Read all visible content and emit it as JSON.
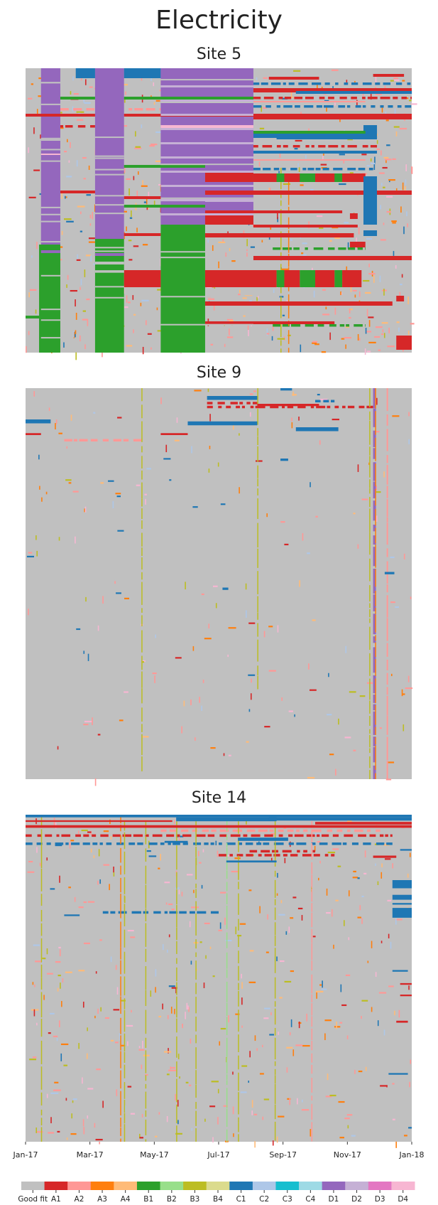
{
  "figure": {
    "title": "Electricity"
  },
  "chart_data": [
    {
      "type": "heatmap",
      "title": "Site 5",
      "x_range": [
        "Jan-17",
        "Jan-18"
      ],
      "description_of_patterns": "",
      "rects": [
        {
          "c": "D1",
          "x0": 0.04,
          "x1": 0.09,
          "y0": 0,
          "y1": 0.62
        },
        {
          "c": "B1",
          "x0": 0.035,
          "x1": 0.09,
          "y0": 0.62,
          "y1": 1.0
        },
        {
          "c": "D1",
          "x0": 0.18,
          "x1": 0.255,
          "y0": 0,
          "y1": 0.6
        },
        {
          "c": "B1",
          "x0": 0.18,
          "x1": 0.255,
          "y0": 0.6,
          "y1": 1.0
        },
        {
          "c": "C1",
          "x0": 0.13,
          "x1": 0.18,
          "y0": 0,
          "y1": 0.035
        },
        {
          "c": "C1",
          "x0": 0.255,
          "x1": 0.35,
          "y0": 0,
          "y1": 0.035
        },
        {
          "c": "D1",
          "x0": 0.35,
          "x1": 0.59,
          "y0": 0,
          "y1": 0.55
        },
        {
          "c": "B1",
          "x0": 0.35,
          "x1": 0.465,
          "y0": 0.55,
          "y1": 1.0
        },
        {
          "c": "A1",
          "x0": 0.255,
          "x1": 0.35,
          "y0": 0.71,
          "y1": 0.77
        },
        {
          "c": "A1",
          "x0": 0.465,
          "x1": 0.65,
          "y0": 0.71,
          "y1": 0.77
        },
        {
          "c": "A1",
          "x0": 0.465,
          "x1": 0.59,
          "y0": 0.36,
          "y1": 0.4
        },
        {
          "c": "A1",
          "x0": 0.465,
          "x1": 0.59,
          "y0": 0.5,
          "y1": 0.55
        },
        {
          "c": "A1",
          "x0": 0.59,
          "x1": 0.88,
          "y0": 0.37,
          "y1": 0.4
        },
        {
          "c": "B1",
          "x0": 0.65,
          "x1": 0.67,
          "y0": 0.37,
          "y1": 0.4
        },
        {
          "c": "B1",
          "x0": 0.71,
          "x1": 0.75,
          "y0": 0.37,
          "y1": 0.4
        },
        {
          "c": "B1",
          "x0": 0.8,
          "x1": 0.82,
          "y0": 0.37,
          "y1": 0.4
        },
        {
          "c": "B1",
          "x0": 0.65,
          "x1": 0.67,
          "y0": 0.71,
          "y1": 0.77
        },
        {
          "c": "B1",
          "x0": 0.71,
          "x1": 0.75,
          "y0": 0.71,
          "y1": 0.77
        },
        {
          "c": "B1",
          "x0": 0.8,
          "x1": 0.82,
          "y0": 0.71,
          "y1": 0.77
        },
        {
          "c": "A1",
          "x0": 0.67,
          "x1": 0.71,
          "y0": 0.71,
          "y1": 0.77
        },
        {
          "c": "A1",
          "x0": 0.75,
          "x1": 0.8,
          "y0": 0.71,
          "y1": 0.77
        },
        {
          "c": "A1",
          "x0": 0.82,
          "x1": 0.87,
          "y0": 0.71,
          "y1": 0.77
        },
        {
          "c": "A1",
          "x0": 0.59,
          "x1": 1.0,
          "y0": 0.16,
          "y1": 0.18
        },
        {
          "c": "A1",
          "x0": 0.59,
          "x1": 1.0,
          "y0": 0.07,
          "y1": 0.085
        },
        {
          "c": "A1",
          "x0": 0.465,
          "x1": 1.0,
          "y0": 0.43,
          "y1": 0.445
        },
        {
          "c": "A1",
          "x0": 0.465,
          "x1": 0.85,
          "y0": 0.58,
          "y1": 0.595
        },
        {
          "c": "A1",
          "x0": 0.59,
          "x1": 1.0,
          "y0": 0.66,
          "y1": 0.675
        },
        {
          "c": "A1",
          "x0": 0.465,
          "x1": 0.95,
          "y0": 0.82,
          "y1": 0.835
        },
        {
          "c": "A1",
          "x0": 0.465,
          "x1": 0.8,
          "y0": 0.89,
          "y1": 0.9
        },
        {
          "c": "A1",
          "x0": 0.255,
          "x1": 0.35,
          "y0": 0.45,
          "y1": 0.46
        },
        {
          "c": "A1",
          "x0": 0.255,
          "x1": 0.35,
          "y0": 0.58,
          "y1": 0.59
        },
        {
          "c": "A1",
          "x0": 0.09,
          "x1": 0.18,
          "y0": 0.43,
          "y1": 0.44
        },
        {
          "c": "A1",
          "x0": 0,
          "x1": 0.18,
          "y0": 0.16,
          "y1": 0.17
        },
        {
          "c": "A1",
          "x0": 0.255,
          "x1": 0.59,
          "y0": 0.16,
          "y1": 0.17
        },
        {
          "c": "C1",
          "x0": 0.59,
          "x1": 0.91,
          "y0": 0.23,
          "y1": 0.245
        },
        {
          "c": "C1",
          "x0": 0.7,
          "x1": 1.0,
          "y0": 0.08,
          "y1": 0.09
        },
        {
          "c": "C1",
          "x0": 0.59,
          "x1": 0.91,
          "y0": 0.29,
          "y1": 0.3
        },
        {
          "c": "C1",
          "x0": 0.875,
          "x1": 0.91,
          "y0": 0.38,
          "y1": 0.55
        },
        {
          "c": "C1",
          "x0": 0.875,
          "x1": 0.91,
          "y0": 0.2,
          "y1": 0.23
        },
        {
          "c": "C1",
          "x0": 0.65,
          "x1": 0.91,
          "y0": 0.24,
          "y1": 0.25
        },
        {
          "c": "B1",
          "x0": 0.09,
          "x1": 0.18,
          "y0": 0.1,
          "y1": 0.11
        },
        {
          "c": "B1",
          "x0": 0.255,
          "x1": 0.59,
          "y0": 0.1,
          "y1": 0.11
        },
        {
          "c": "B1",
          "x0": 0.59,
          "x1": 0.88,
          "y0": 0.22,
          "y1": 0.23
        },
        {
          "c": "B1",
          "x0": 0.255,
          "x1": 0.465,
          "y0": 0.34,
          "y1": 0.35
        },
        {
          "c": "B1",
          "x0": 0.255,
          "x1": 0.465,
          "y0": 0.48,
          "y1": 0.49
        },
        {
          "c": "D2",
          "x0": 0.465,
          "x1": 0.59,
          "y0": 0.46,
          "y1": 0.47
        },
        {
          "c": "D4",
          "x0": 0.35,
          "x1": 0.59,
          "y0": 0.2,
          "y1": 0.21
        },
        {
          "c": "D4",
          "x0": 0.04,
          "x1": 0.09,
          "y0": 0.3,
          "y1": 0.305
        },
        {
          "c": "A1",
          "x0": 0.96,
          "x1": 1.0,
          "y0": 0.94,
          "y1": 0.99
        },
        {
          "c": "A1",
          "x0": 0.96,
          "x1": 0.98,
          "y0": 0.8,
          "y1": 0.82
        },
        {
          "c": "A1",
          "x0": 0.84,
          "x1": 0.88,
          "y0": 0.61,
          "y1": 0.63
        },
        {
          "c": "A1",
          "x0": 0.84,
          "x1": 0.86,
          "y0": 0.51,
          "y1": 0.53
        },
        {
          "c": "C1",
          "x0": 0.875,
          "x1": 0.91,
          "y0": 0.57,
          "y1": 0.59
        },
        {
          "c": "A2",
          "x0": 0.59,
          "x1": 0.88,
          "y0": 0.115,
          "y1": 0.12
        },
        {
          "c": "A2",
          "x0": 0.59,
          "x1": 0.88,
          "y0": 0.32,
          "y1": 0.325
        },
        {
          "c": "D1",
          "x0": 0.04,
          "x1": 0.09,
          "y0": 0.64,
          "y1": 0.65
        },
        {
          "c": "D1",
          "x0": 0.18,
          "x1": 0.255,
          "y0": 0.65,
          "y1": 0.66
        },
        {
          "c": "A1",
          "x0": 0.59,
          "x1": 0.82,
          "y0": 0.5,
          "y1": 0.51
        },
        {
          "c": "A1",
          "x0": 0.59,
          "x1": 0.86,
          "y0": 0.55,
          "y1": 0.56
        },
        {
          "c": "A1",
          "x0": 0.9,
          "x1": 0.98,
          "y0": 0.02,
          "y1": 0.03
        },
        {
          "c": "A1",
          "x0": 0.63,
          "x1": 0.76,
          "y0": 0.03,
          "y1": 0.04
        },
        {
          "c": "A1",
          "x0": 0.0,
          "x1": 0.04,
          "y0": 0.16,
          "y1": 0.17
        },
        {
          "c": "B1",
          "x0": 0.0,
          "x1": 0.035,
          "y0": 0.87,
          "y1": 0.88
        }
      ],
      "dashes": [
        {
          "c": "C1",
          "y": 0.05,
          "x0": 0.59,
          "x1": 1.0
        },
        {
          "c": "C1",
          "y": 0.13,
          "x0": 0.59,
          "x1": 1.0
        },
        {
          "c": "C1",
          "y": 0.35,
          "x0": 0.59,
          "x1": 0.9
        },
        {
          "c": "A1",
          "y": 0.1,
          "x0": 0.59,
          "x1": 1.0
        },
        {
          "c": "A1",
          "y": 0.27,
          "x0": 0.59,
          "x1": 0.91
        },
        {
          "c": "D2",
          "y": 0.07,
          "x0": 0.35,
          "x1": 0.59
        },
        {
          "c": "D2",
          "y": 0.28,
          "x0": 0.35,
          "x1": 0.59
        },
        {
          "c": "A2",
          "y": 0.14,
          "x0": 0.09,
          "x1": 0.35
        },
        {
          "c": "A2",
          "y": 0.19,
          "x0": 0.35,
          "x1": 0.59
        },
        {
          "c": "A2",
          "y": 0.3,
          "x0": 0.35,
          "x1": 0.59
        },
        {
          "c": "D2",
          "y": 0.25,
          "x0": 0.04,
          "x1": 0.09
        },
        {
          "c": "D4",
          "y": 0.31,
          "x0": 0.04,
          "x1": 0.09
        },
        {
          "c": "A2",
          "y": 0.92,
          "x0": 0.04,
          "x1": 0.09
        },
        {
          "c": "B1",
          "y": 0.63,
          "x0": 0.64,
          "x1": 0.88
        },
        {
          "c": "B1",
          "y": 0.9,
          "x0": 0.64,
          "x1": 0.88
        },
        {
          "c": "A1",
          "y": 0.2,
          "x0": 0.09,
          "x1": 0.18
        }
      ],
      "vlines": [
        {
          "c": "B3",
          "x": 0.66,
          "y0": 0.35,
          "y1": 1.0
        },
        {
          "c": "A3",
          "x": 0.4,
          "y0": 0.0,
          "y1": 0.3
        },
        {
          "c": "A3",
          "x": 0.68,
          "y0": 0.4,
          "y1": 1.0
        }
      ],
      "seed": 5,
      "density": 0.7
    },
    {
      "type": "heatmap",
      "title": "Site 9",
      "x_range": [
        "Jan-17",
        "Jan-18"
      ],
      "rects": [
        {
          "c": "C1",
          "x0": 0.47,
          "x1": 0.6,
          "y0": 0.02,
          "y1": 0.03
        },
        {
          "c": "C1",
          "x0": 0.42,
          "x1": 0.6,
          "y0": 0.085,
          "y1": 0.095
        },
        {
          "c": "C1",
          "x0": 0.0,
          "x1": 0.065,
          "y0": 0.08,
          "y1": 0.09
        },
        {
          "c": "C1",
          "x0": 0.7,
          "x1": 0.81,
          "y0": 0.1,
          "y1": 0.11
        },
        {
          "c": "A1",
          "x0": 0.35,
          "x1": 0.42,
          "y0": 0.115,
          "y1": 0.12
        },
        {
          "c": "A1",
          "x0": 0.0,
          "x1": 0.04,
          "y0": 0.115,
          "y1": 0.12
        },
        {
          "c": "A1",
          "x0": 0.6,
          "x1": 0.76,
          "y0": 0.04,
          "y1": 0.046
        },
        {
          "c": "C1",
          "x0": 0.66,
          "x1": 0.68,
          "y0": 0.18,
          "y1": 0.186
        },
        {
          "c": "C1",
          "x0": 0.93,
          "x1": 0.955,
          "y0": 0.47,
          "y1": 0.476
        },
        {
          "c": "C1",
          "x0": 0.51,
          "x1": 0.525,
          "y0": 0.51,
          "y1": 0.516
        },
        {
          "c": "C1",
          "x0": 0.66,
          "x1": 0.69,
          "y0": 0.0,
          "y1": 0.006
        }
      ],
      "dashes": [
        {
          "c": "A1",
          "y": 0.045,
          "x0": 0.47,
          "x1": 0.9
        },
        {
          "c": "C1",
          "y": 0.03,
          "x0": 0.75,
          "x1": 0.8
        },
        {
          "c": "A2",
          "y": 0.13,
          "x0": 0.1,
          "x1": 0.3
        },
        {
          "c": "A1",
          "y": 0.035,
          "x0": 0.47,
          "x1": 0.6
        }
      ],
      "vlines": [
        {
          "c": "D1",
          "x": 0.9,
          "y0": 0.0,
          "y1": 1.0,
          "w": 4
        },
        {
          "c": "A2",
          "x": 0.935,
          "y0": 0.0,
          "y1": 1.0,
          "w": 2
        },
        {
          "c": "B3",
          "x": 0.6,
          "y0": 0.0,
          "y1": 0.77
        },
        {
          "c": "B3",
          "x": 0.3,
          "y0": 0.0,
          "y1": 0.98
        },
        {
          "c": "B3",
          "x": 0.89,
          "y0": 0.0,
          "y1": 1.0
        },
        {
          "c": "A3",
          "x": 0.905,
          "y0": 0.0,
          "y1": 1.0
        }
      ],
      "seed": 9,
      "density": 0.2
    },
    {
      "type": "heatmap",
      "title": "Site 14",
      "x_range": [
        "Jan-17",
        "Jan-18"
      ],
      "rects": [
        {
          "c": "C1",
          "x0": 0.0,
          "x1": 1.0,
          "y0": 0.0,
          "y1": 0.008
        },
        {
          "c": "C1",
          "x0": 0.39,
          "x1": 0.65,
          "y0": 0.008,
          "y1": 0.02
        },
        {
          "c": "C1",
          "x0": 0.63,
          "x1": 1.0,
          "y0": 0.008,
          "y1": 0.018
        },
        {
          "c": "C1",
          "x0": 0.55,
          "x1": 0.68,
          "y0": 0.07,
          "y1": 0.08
        },
        {
          "c": "C1",
          "x0": 0.52,
          "x1": 0.65,
          "y0": 0.14,
          "y1": 0.146
        },
        {
          "c": "C1",
          "x0": 0.95,
          "x1": 1.0,
          "y0": 0.2,
          "y1": 0.225
        },
        {
          "c": "C1",
          "x0": 0.95,
          "x1": 1.0,
          "y0": 0.245,
          "y1": 0.26
        },
        {
          "c": "C1",
          "x0": 0.95,
          "x1": 1.0,
          "y0": 0.27,
          "y1": 0.275
        },
        {
          "c": "C1",
          "x0": 0.95,
          "x1": 1.0,
          "y0": 0.285,
          "y1": 0.315
        },
        {
          "c": "C1",
          "x0": 0.95,
          "x1": 0.99,
          "y0": 0.475,
          "y1": 0.48
        },
        {
          "c": "C1",
          "x0": 0.94,
          "x1": 0.99,
          "y0": 0.79,
          "y1": 0.795
        },
        {
          "c": "C1",
          "x0": 0.97,
          "x1": 1.0,
          "y0": 0.105,
          "y1": 0.11
        },
        {
          "c": "C1",
          "x0": 0.36,
          "x1": 0.42,
          "y0": 0.08,
          "y1": 0.086
        },
        {
          "c": "C1",
          "x0": 0.1,
          "x1": 0.14,
          "y0": 0.305,
          "y1": 0.31
        },
        {
          "c": "A1",
          "x0": 0.0,
          "x1": 1.0,
          "y0": 0.032,
          "y1": 0.04
        },
        {
          "c": "A1",
          "x0": 0.75,
          "x1": 1.0,
          "y0": 0.022,
          "y1": 0.03
        },
        {
          "c": "A1",
          "x0": 0.0,
          "x1": 0.38,
          "y0": 0.017,
          "y1": 0.022
        },
        {
          "c": "A1",
          "x0": 0.9,
          "x1": 0.96,
          "y0": 0.125,
          "y1": 0.132
        },
        {
          "c": "A1",
          "x0": 0.97,
          "x1": 1.0,
          "y0": 0.515,
          "y1": 0.52
        },
        {
          "c": "A1",
          "x0": 0.97,
          "x1": 1.0,
          "y0": 0.55,
          "y1": 0.555
        },
        {
          "c": "A1",
          "x0": 0.96,
          "x1": 0.99,
          "y0": 0.63,
          "y1": 0.636
        }
      ],
      "dashes": [
        {
          "c": "A2",
          "y": 0.045,
          "x0": 0.35,
          "x1": 0.92
        },
        {
          "c": "A1",
          "y": 0.06,
          "x0": 0.0,
          "x1": 0.95
        },
        {
          "c": "C1",
          "y": 0.085,
          "x0": 0.0,
          "x1": 0.95
        },
        {
          "c": "A1",
          "y": 0.12,
          "x0": 0.5,
          "x1": 0.8
        },
        {
          "c": "C1",
          "y": 0.295,
          "x0": 0.2,
          "x1": 0.5
        },
        {
          "c": "A1",
          "y": 0.108,
          "x0": 0.58,
          "x1": 0.75
        }
      ],
      "vlines": [
        {
          "c": "B3",
          "x": 0.04,
          "y0": 0.0,
          "y1": 1.0
        },
        {
          "c": "A3",
          "x": 0.245,
          "y0": 0.0,
          "y1": 1.0
        },
        {
          "c": "B3",
          "x": 0.255,
          "y0": 0.02,
          "y1": 1.0
        },
        {
          "c": "B3",
          "x": 0.31,
          "y0": 0.02,
          "y1": 1.0
        },
        {
          "c": "B3",
          "x": 0.39,
          "y0": 0.02,
          "y1": 1.0
        },
        {
          "c": "B3",
          "x": 0.44,
          "y0": 0.02,
          "y1": 1.0
        },
        {
          "c": "B2",
          "x": 0.52,
          "y0": 0.02,
          "y1": 1.0
        },
        {
          "c": "B3",
          "x": 0.55,
          "y0": 0.02,
          "y1": 1.0
        },
        {
          "c": "A2",
          "x": 0.74,
          "y0": 0.02,
          "y1": 1.0
        },
        {
          "c": "B3",
          "x": 0.645,
          "y0": 0.02,
          "y1": 1.0
        }
      ],
      "seed": 14,
      "density": 0.45
    }
  ],
  "x_axis": {
    "ticks": [
      "Jan-17",
      "Mar-17",
      "May-17",
      "Jul-17",
      "Sep-17",
      "Nov-17",
      "Jan-18"
    ]
  },
  "legend": {
    "items": [
      {
        "label": "Good fit",
        "color": "#c0c0c0"
      },
      {
        "label": "A1",
        "color": "#d62728"
      },
      {
        "label": "A2",
        "color": "#ff9896"
      },
      {
        "label": "A3",
        "color": "#ff7f0e"
      },
      {
        "label": "A4",
        "color": "#ffbb78"
      },
      {
        "label": "B1",
        "color": "#2ca02c"
      },
      {
        "label": "B2",
        "color": "#98df8a"
      },
      {
        "label": "B3",
        "color": "#bcbd22"
      },
      {
        "label": "B4",
        "color": "#dbdb8d"
      },
      {
        "label": "C1",
        "color": "#1f77b4"
      },
      {
        "label": "C2",
        "color": "#aec7e8"
      },
      {
        "label": "C3",
        "color": "#17becf"
      },
      {
        "label": "C4",
        "color": "#9edae5"
      },
      {
        "label": "D1",
        "color": "#9467bd"
      },
      {
        "label": "D2",
        "color": "#c5b0d5"
      },
      {
        "label": "D3",
        "color": "#e377c2"
      },
      {
        "label": "D4",
        "color": "#f7b6d2"
      }
    ]
  }
}
